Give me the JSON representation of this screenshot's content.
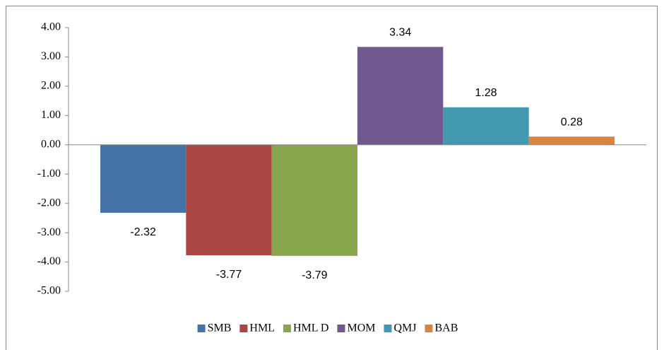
{
  "chart_data": {
    "type": "bar",
    "categories": [
      null
    ],
    "series": [
      {
        "name": "SMB",
        "color": "#4572a7",
        "values": [
          -2.32
        ]
      },
      {
        "name": "HML",
        "color": "#aa4643",
        "values": [
          -3.77
        ]
      },
      {
        "name": "HML D",
        "color": "#89a54e",
        "values": [
          -3.79
        ]
      },
      {
        "name": "MOM",
        "color": "#71588f",
        "values": [
          3.34
        ]
      },
      {
        "name": "QMJ",
        "color": "#4198af",
        "values": [
          1.28
        ]
      },
      {
        "name": "BAB",
        "color": "#db843d",
        "values": [
          0.28
        ]
      }
    ],
    "ylim": [
      -5,
      4
    ],
    "yticks": [
      {
        "value": -5,
        "label": "-5.00"
      },
      {
        "value": -4,
        "label": "-4.00"
      },
      {
        "value": -3,
        "label": "-3.00"
      },
      {
        "value": -2,
        "label": "-2.00"
      },
      {
        "value": -1,
        "label": "-1.00"
      },
      {
        "value": 0,
        "label": "0.00"
      },
      {
        "value": 1,
        "label": "1.00"
      },
      {
        "value": 2,
        "label": "2.00"
      },
      {
        "value": 3,
        "label": "3.00"
      },
      {
        "value": 4,
        "label": "4.00"
      }
    ],
    "grid": false,
    "legend": "bottom"
  }
}
